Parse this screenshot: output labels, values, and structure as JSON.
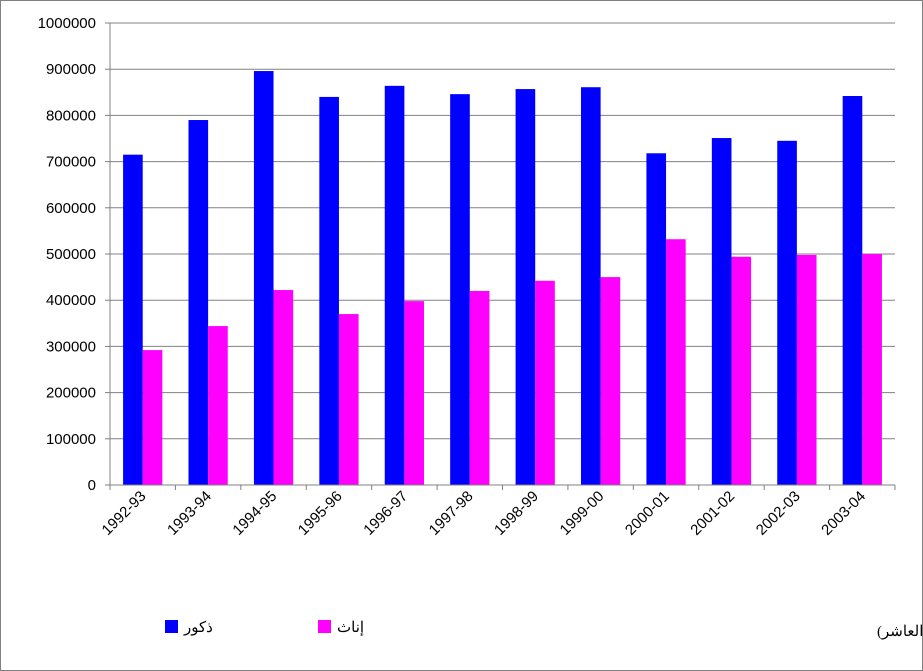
{
  "chart_data": {
    "type": "bar",
    "annotation": "المرحلة الثانوية (من الصف التاسع إلى الصف العاشر)",
    "categories": [
      "1992-93",
      "1993-94",
      "1994-95",
      "1995-96",
      "1996-97",
      "1997-98",
      "1998-99",
      "1999-00",
      "2000-01",
      "2001-02",
      "2002-03",
      "2003-04"
    ],
    "series": [
      {
        "name": "ذكور",
        "color": "#0000ff",
        "values": [
          715000,
          790000,
          896000,
          840000,
          864000,
          846000,
          857000,
          861000,
          718000,
          751000,
          745000,
          842000
        ]
      },
      {
        "name": "إناث",
        "color": "#ff00ff",
        "values": [
          292000,
          344000,
          422000,
          370000,
          398000,
          420000,
          442000,
          450000,
          532000,
          494000,
          498000,
          500000
        ]
      }
    ],
    "ylim": [
      0,
      1000000
    ],
    "yticks": [
      0,
      100000,
      200000,
      300000,
      400000,
      500000,
      600000,
      700000,
      800000,
      900000,
      1000000
    ],
    "grid": true
  }
}
